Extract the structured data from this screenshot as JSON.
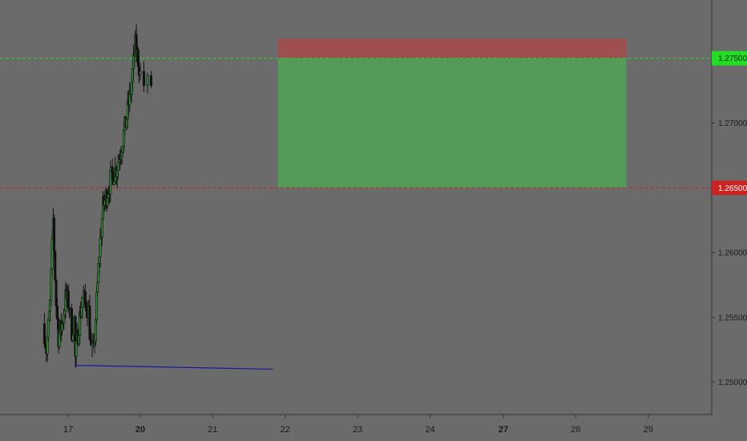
{
  "chart_data": {
    "type": "candlestick",
    "symbol_timeframe": "",
    "ylim": [
      1.2475,
      1.2795
    ],
    "y_ticks": [
      "1.25000",
      "1.25500",
      "1.26000",
      "1.26500",
      "1.27000",
      "1.27500"
    ],
    "y_tick_values": [
      1.25,
      1.255,
      1.26,
      1.265,
      1.27,
      1.275
    ],
    "x_ticks": [
      {
        "label": "17",
        "day": 17,
        "bold": false
      },
      {
        "label": "20",
        "day": 20,
        "bold": true
      },
      {
        "label": "21",
        "day": 21,
        "bold": false
      },
      {
        "label": "22",
        "day": 22,
        "bold": false
      },
      {
        "label": "23",
        "day": 23,
        "bold": false
      },
      {
        "label": "24",
        "day": 24,
        "bold": false
      },
      {
        "label": "27",
        "day": 27,
        "bold": true
      },
      {
        "label": "28",
        "day": 28,
        "bold": false
      },
      {
        "label": "29",
        "day": 29,
        "bold": false
      }
    ],
    "position": {
      "side": "short",
      "entry": 1.275,
      "stop": 1.2765,
      "target": 1.265,
      "start_day": 21.9,
      "end_day": 28.7
    },
    "price_lines": [
      {
        "name": "entry",
        "value": 1.275,
        "label": "1.27500",
        "color": "#22dd22"
      },
      {
        "name": "target",
        "value": 1.265,
        "label": "1.26500",
        "color": "#cc2222"
      }
    ],
    "support_line": {
      "x1": 17.3,
      "y1": 1.2513,
      "x2": 21.83,
      "y2": 1.251,
      "color": "#1a1aa0"
    },
    "ohlc_anchors": [
      [
        15.97,
        1.2545
      ],
      [
        16.1,
        1.2525
      ],
      [
        16.25,
        1.256
      ],
      [
        16.38,
        1.2625
      ],
      [
        16.5,
        1.256
      ],
      [
        16.6,
        1.2535
      ],
      [
        16.75,
        1.2545
      ],
      [
        16.9,
        1.2565
      ],
      [
        17.05,
        1.256
      ],
      [
        17.15,
        1.254
      ],
      [
        17.25,
        1.2548
      ],
      [
        17.3,
        1.2518
      ],
      [
        17.45,
        1.2545
      ],
      [
        17.6,
        1.2565
      ],
      [
        17.75,
        1.256
      ],
      [
        17.85,
        1.2555
      ],
      [
        17.95,
        1.2525
      ],
      [
        18.05,
        1.2522
      ],
      [
        18.15,
        1.255
      ],
      [
        18.3,
        1.26
      ],
      [
        18.45,
        1.2635
      ],
      [
        18.6,
        1.2645
      ],
      [
        18.8,
        1.2658
      ],
      [
        19.0,
        1.2665
      ],
      [
        19.2,
        1.268
      ],
      [
        19.4,
        1.27
      ],
      [
        19.6,
        1.2725
      ],
      [
        19.8,
        1.276
      ],
      [
        19.95,
        1.2745
      ],
      [
        20.05,
        1.273
      ],
      [
        20.15,
        1.273
      ]
    ]
  }
}
